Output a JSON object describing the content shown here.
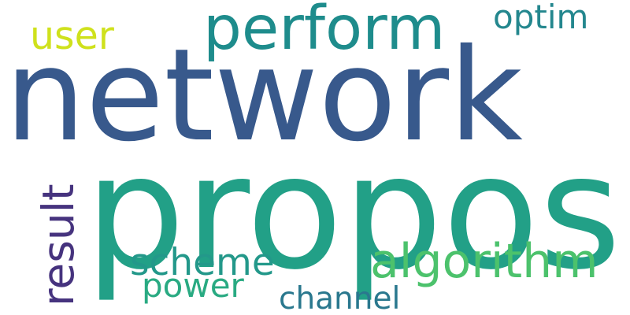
{
  "words": [
    {
      "text": "propos",
      "color": "#22a087"
    },
    {
      "text": "network",
      "color": "#38598c"
    },
    {
      "text": "perform",
      "color": "#1e8c8c"
    },
    {
      "text": "algorithm",
      "color": "#4cc26c"
    },
    {
      "text": "scheme",
      "color": "#23988a"
    },
    {
      "text": "user",
      "color": "#cfe11c"
    },
    {
      "text": "optim",
      "color": "#24878e"
    },
    {
      "text": "power",
      "color": "#29aa82"
    },
    {
      "text": "channel",
      "color": "#2a788e"
    },
    {
      "text": "result",
      "color": "#46337e"
    }
  ]
}
